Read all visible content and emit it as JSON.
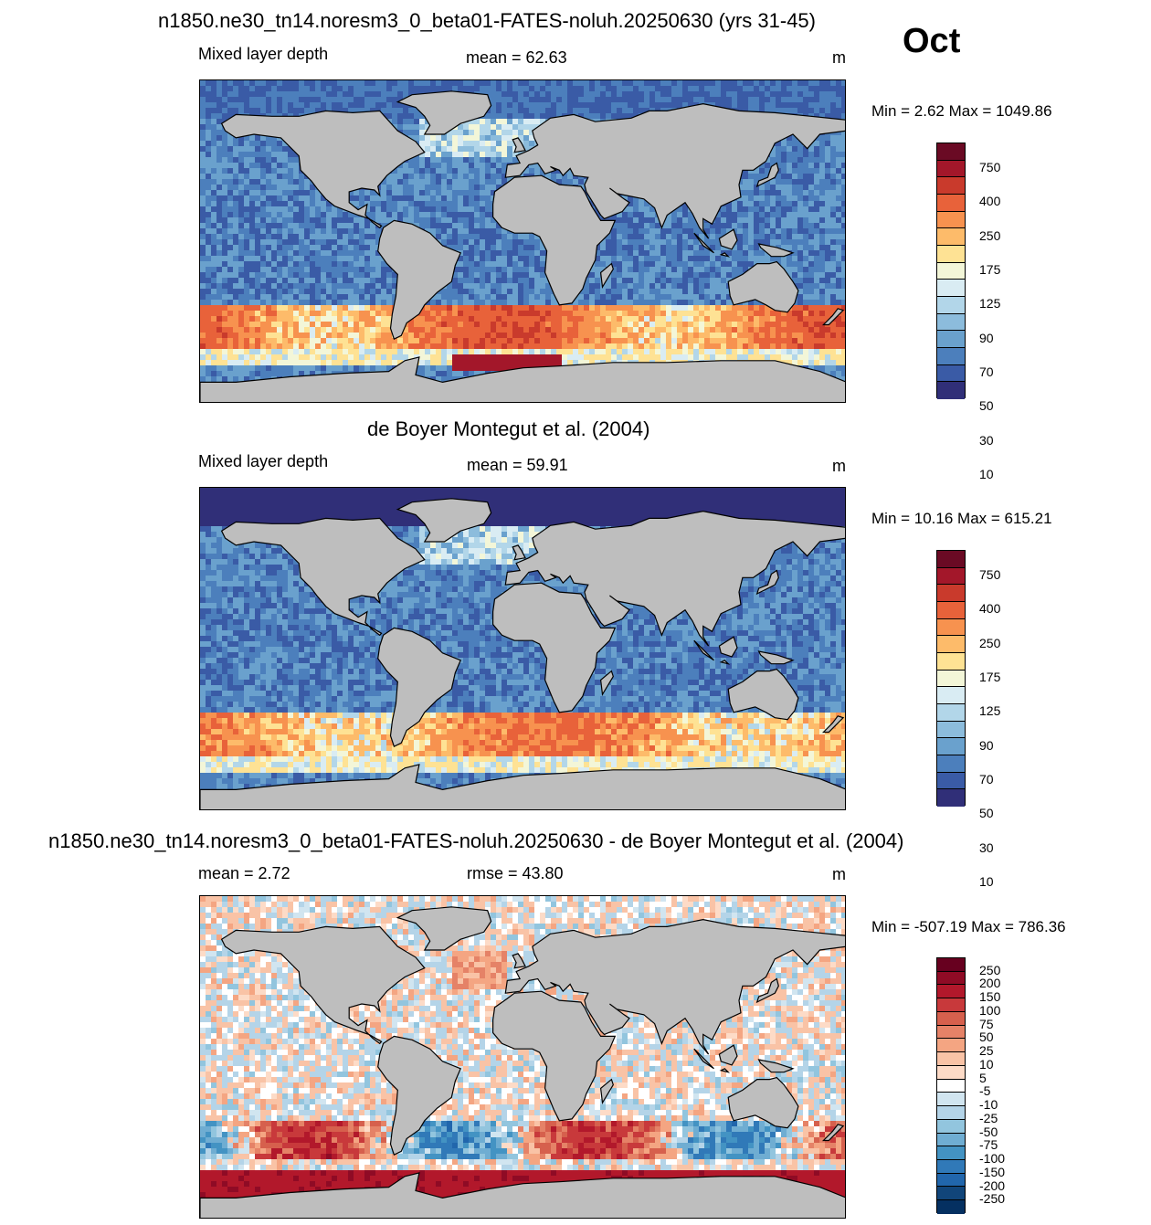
{
  "month": "Oct",
  "panels": [
    {
      "title": "n1850.ne30_tn14.noresm3_0_beta01-FATES-noluh.20250630 (yrs 31-45)",
      "variable": "Mixed layer depth",
      "stat_label": "mean =  62.63",
      "units": "m",
      "minmax": "Min =   2.62 Max = 1049.86",
      "colorbar_labels": [
        "750",
        "400",
        "250",
        "175",
        "125",
        "90",
        "70",
        "50",
        "30",
        "10"
      ],
      "colorbar_colors": [
        "#6a0a24",
        "#a3172a",
        "#c93a2c",
        "#e8623a",
        "#f7924f",
        "#fdbb6a",
        "#fee294",
        "#f3f6d8",
        "#d9ecf3",
        "#b2d6e9",
        "#8cbcdc",
        "#6aa1cd",
        "#4c7fbc",
        "#3a5ba6",
        "#302f78"
      ]
    },
    {
      "title": "de Boyer Montegut et al. (2004)",
      "variable": "Mixed layer depth",
      "stat_label": "mean =  59.91",
      "units": "m",
      "minmax": "Min =  10.16 Max = 615.21",
      "colorbar_labels": [
        "750",
        "400",
        "250",
        "175",
        "125",
        "90",
        "70",
        "50",
        "30",
        "10"
      ],
      "colorbar_colors": [
        "#6a0a24",
        "#a3172a",
        "#c93a2c",
        "#e8623a",
        "#f7924f",
        "#fdbb6a",
        "#fee294",
        "#f3f6d8",
        "#d9ecf3",
        "#b2d6e9",
        "#8cbcdc",
        "#6aa1cd",
        "#4c7fbc",
        "#3a5ba6",
        "#302f78"
      ]
    },
    {
      "title": "n1850.ne30_tn14.noresm3_0_beta01-FATES-noluh.20250630 - de Boyer Montegut et al. (2004)",
      "variable": "mean =   2.72",
      "stat_label": "rmse =  43.80",
      "units": "m",
      "minmax": "Min = -507.19 Max = 786.36",
      "colorbar_labels": [
        "250",
        "200",
        "150",
        "100",
        "75",
        "50",
        "25",
        "10",
        "5",
        "-5",
        "-10",
        "-25",
        "-50",
        "-75",
        "-100",
        "-150",
        "-200",
        "-250"
      ],
      "colorbar_colors": [
        "#67001f",
        "#8f0b25",
        "#b2182b",
        "#c8393b",
        "#d6604d",
        "#e58267",
        "#f4a582",
        "#f9c3a6",
        "#fddbc7",
        "#ffffff",
        "#d1e5f0",
        "#b4d4e8",
        "#92c5de",
        "#6fadd2",
        "#4393c3",
        "#3079b8",
        "#2166ac",
        "#11457a",
        "#053061"
      ]
    }
  ]
}
